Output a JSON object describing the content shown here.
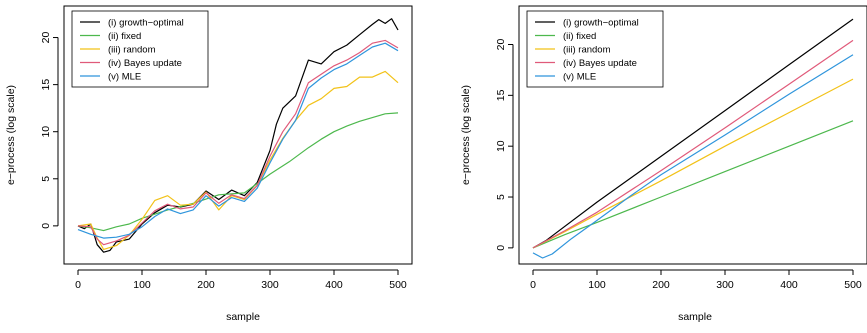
{
  "chart_data": [
    {
      "type": "line",
      "xlabel": "sample",
      "ylabel": "e−process (log scale)",
      "xlim": [
        0,
        500
      ],
      "ylim": [
        -3.2,
        22.5
      ],
      "xticks": [
        "0",
        "100",
        "200",
        "300",
        "400",
        "500"
      ],
      "yticks": [
        "0",
        "5",
        "10",
        "15",
        "20"
      ],
      "legend_position": "top-left",
      "series": [
        {
          "name": "(i) growth−optimal",
          "color": "#000000",
          "x": [
            0,
            10,
            20,
            30,
            40,
            50,
            60,
            80,
            100,
            120,
            140,
            160,
            180,
            200,
            220,
            240,
            260,
            280,
            300,
            310,
            320,
            340,
            360,
            380,
            400,
            420,
            440,
            460,
            470,
            480,
            490,
            500
          ],
          "y": [
            0,
            -0.3,
            0.2,
            -2.0,
            -2.8,
            -2.6,
            -1.7,
            -1.4,
            0.2,
            1.4,
            2.2,
            2.0,
            2.3,
            3.7,
            2.8,
            3.8,
            3.2,
            4.6,
            8.0,
            10.8,
            12.5,
            13.8,
            17.6,
            17.2,
            18.5,
            19.2,
            20.3,
            21.4,
            21.9,
            21.5,
            22.0,
            20.8
          ]
        },
        {
          "name": "(ii) fixed",
          "color": "#4db84d",
          "x": [
            0,
            20,
            40,
            60,
            80,
            100,
            140,
            180,
            220,
            260,
            300,
            330,
            360,
            380,
            400,
            420,
            440,
            460,
            480,
            500
          ],
          "y": [
            0,
            -0.2,
            -0.5,
            -0.1,
            0.2,
            0.8,
            1.7,
            2.4,
            3.3,
            3.5,
            5.5,
            6.8,
            8.3,
            9.2,
            10.0,
            10.6,
            11.1,
            11.5,
            11.9,
            12.0
          ]
        },
        {
          "name": "(iii) random",
          "color": "#f2c218",
          "x": [
            0,
            20,
            30,
            40,
            60,
            80,
            100,
            120,
            140,
            160,
            180,
            200,
            220,
            240,
            260,
            280,
            300,
            320,
            340,
            360,
            380,
            400,
            420,
            440,
            460,
            480,
            500
          ],
          "y": [
            0,
            0.2,
            -1.3,
            -2.5,
            -2.1,
            -1.0,
            0.7,
            2.7,
            3.2,
            2.2,
            2.3,
            3.6,
            1.7,
            3.2,
            2.8,
            4.3,
            7.0,
            9.3,
            11.2,
            12.8,
            13.5,
            14.6,
            14.8,
            15.8,
            15.8,
            16.4,
            15.2
          ]
        },
        {
          "name": "(iv) Bayes update",
          "color": "#e05a7a",
          "x": [
            0,
            20,
            30,
            40,
            60,
            80,
            100,
            120,
            140,
            160,
            180,
            200,
            220,
            240,
            260,
            280,
            300,
            320,
            340,
            360,
            380,
            400,
            420,
            440,
            460,
            480,
            500
          ],
          "y": [
            0,
            -0.1,
            -1.4,
            -2.0,
            -1.6,
            -1.0,
            0.3,
            1.6,
            2.3,
            1.8,
            2.0,
            3.5,
            2.4,
            3.3,
            2.9,
            4.3,
            7.4,
            10.0,
            11.9,
            15.2,
            16.1,
            17.0,
            17.6,
            18.4,
            19.4,
            19.7,
            18.9
          ]
        },
        {
          "name": "(v) MLE",
          "color": "#2f95dc",
          "x": [
            0,
            20,
            30,
            40,
            60,
            80,
            100,
            120,
            140,
            160,
            180,
            200,
            220,
            240,
            260,
            280,
            300,
            320,
            340,
            360,
            380,
            400,
            420,
            440,
            460,
            480,
            500
          ],
          "y": [
            -0.4,
            -0.9,
            -1.1,
            -1.3,
            -1.2,
            -0.9,
            -0.1,
            1.0,
            1.8,
            1.3,
            1.7,
            3.2,
            2.1,
            3.0,
            2.6,
            4.0,
            6.7,
            9.2,
            11.2,
            14.6,
            15.7,
            16.6,
            17.2,
            18.1,
            19.0,
            19.4,
            18.6
          ]
        }
      ]
    },
    {
      "type": "line",
      "xlabel": "sample",
      "ylabel": "e−process (log scale)",
      "xlim": [
        0,
        500
      ],
      "ylim": [
        -0.8,
        23
      ],
      "xticks": [
        "0",
        "100",
        "200",
        "300",
        "400",
        "500"
      ],
      "yticks": [
        "0",
        "5",
        "10",
        "15",
        "20"
      ],
      "legend_position": "top-left",
      "series": [
        {
          "name": "(i) growth−optimal",
          "color": "#000000",
          "x": [
            0,
            20,
            100,
            200,
            300,
            400,
            500
          ],
          "y": [
            0,
            0.7,
            4.5,
            9.0,
            13.5,
            18.0,
            22.5
          ]
        },
        {
          "name": "(ii) fixed",
          "color": "#4db84d",
          "x": [
            0,
            50,
            100,
            200,
            300,
            400,
            500
          ],
          "y": [
            0,
            1.3,
            2.5,
            5.0,
            7.5,
            10.0,
            12.5
          ]
        },
        {
          "name": "(iii) random",
          "color": "#f2c218",
          "x": [
            0,
            50,
            100,
            200,
            300,
            400,
            500
          ],
          "y": [
            0,
            1.6,
            3.3,
            6.6,
            10.0,
            13.3,
            16.6
          ]
        },
        {
          "name": "(iv) Bayes update",
          "color": "#e05a7a",
          "x": [
            0,
            50,
            100,
            200,
            300,
            400,
            500
          ],
          "y": [
            0,
            1.7,
            3.5,
            7.6,
            11.8,
            16.1,
            20.4
          ]
        },
        {
          "name": "(v) MLE",
          "color": "#2f95dc",
          "x": [
            0,
            15,
            30,
            60,
            100,
            150,
            200,
            300,
            400,
            500
          ],
          "y": [
            -0.5,
            -1.0,
            -0.6,
            0.9,
            2.7,
            5.0,
            7.2,
            11.1,
            15.1,
            19.0
          ]
        }
      ]
    }
  ]
}
